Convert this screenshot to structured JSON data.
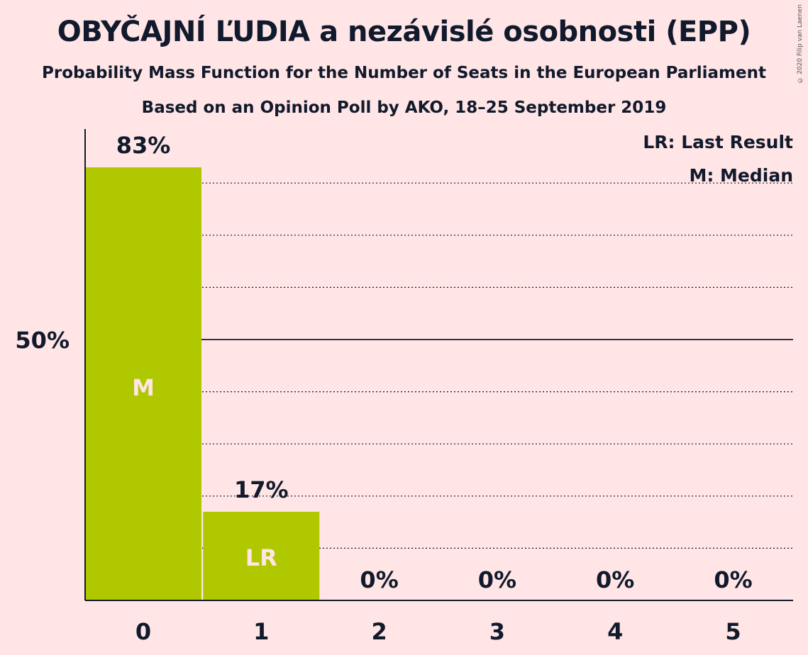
{
  "title": "OBYČAJNÍ ĽUDIA a nezávislé osobnosti (EPP)",
  "subtitle": "Probability Mass Function for the Number of Seats in the European Parliament",
  "subtitle2": "Based on an Opinion Poll by AKO, 18–25 September 2019",
  "copyright": "© 2020 Filip van Laenen",
  "legend": {
    "last_result": "LR: Last Result",
    "median": "M: Median"
  },
  "colors": {
    "background": "#ffe5e5",
    "bar": "#b0c800",
    "text": "#111a2c",
    "marker_text": "#ffe5e5"
  },
  "chart_data": {
    "type": "bar",
    "categories": [
      "0",
      "1",
      "2",
      "3",
      "4",
      "5"
    ],
    "values": [
      83,
      17,
      0,
      0,
      0,
      0
    ],
    "value_labels": [
      "83%",
      "17%",
      "0%",
      "0%",
      "0%",
      "0%"
    ],
    "markers": {
      "0": "M",
      "1": "LR"
    },
    "ytick_labels": [
      {
        "value": 50,
        "label": "50%"
      }
    ],
    "gridlines": [
      10,
      20,
      30,
      40,
      60,
      70,
      80
    ],
    "solid_line": 50,
    "ylim": [
      0,
      90
    ],
    "legend_position": "top-right"
  }
}
